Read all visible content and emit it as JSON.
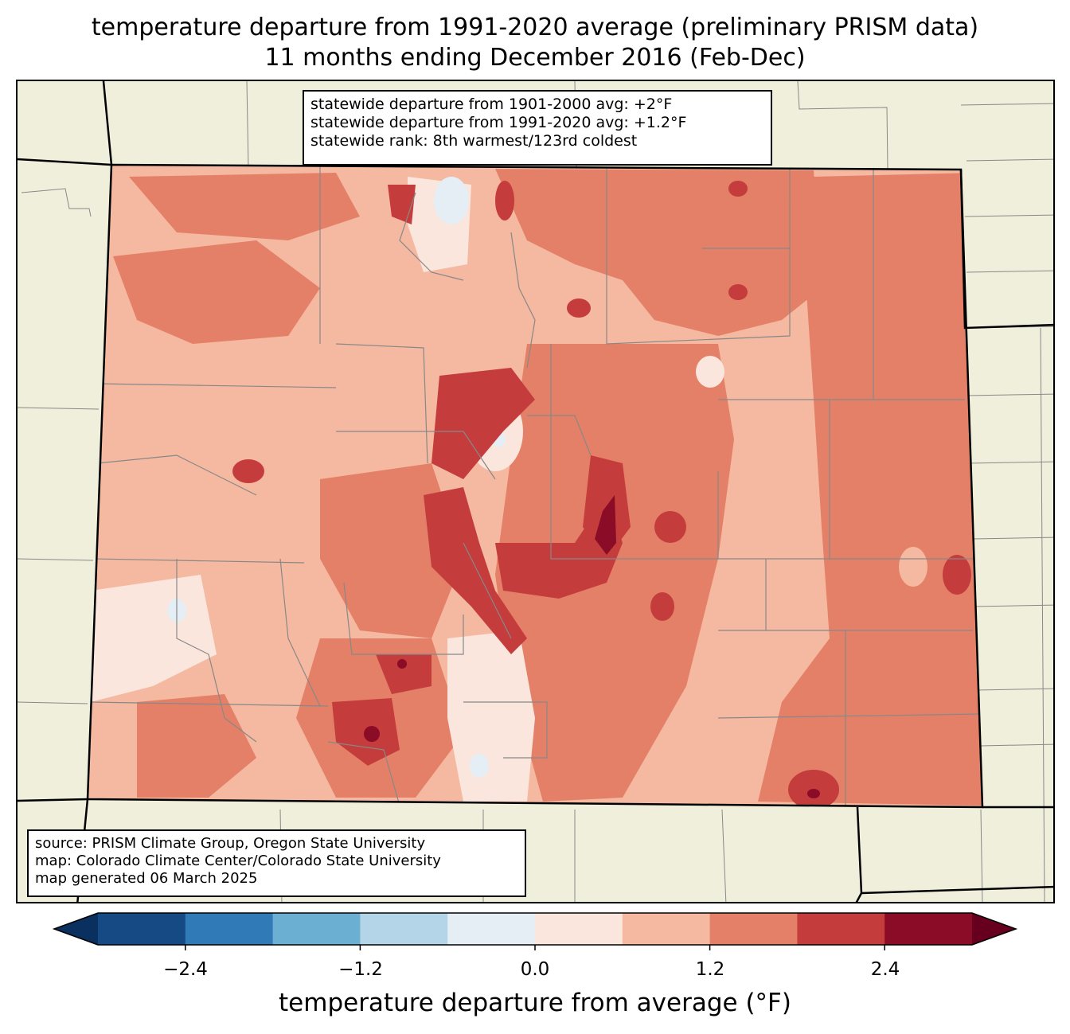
{
  "title": {
    "line1": "temperature departure from 1991-2020 average (preliminary PRISM data)",
    "line2": "11 months ending December 2016 (Feb-Dec)"
  },
  "stats_box": {
    "line1": "statewide departure from 1901-2000 avg: +2°F",
    "line2": "statewide departure from 1991-2020 avg: +1.2°F",
    "line3": "statewide rank: 8th warmest/123rd coldest"
  },
  "source_box": {
    "line1": "source: PRISM Climate Group, Oregon State University",
    "line2": "map: Colorado Climate Center/Colorado State University",
    "line3": "map generated 06 March 2025"
  },
  "colorbar": {
    "title": "temperature departure from average (°F)",
    "tick_labels": [
      "−2.4",
      "−1.2",
      "0.0",
      "1.2",
      "2.4"
    ],
    "bins": [
      {
        "from": -3.0,
        "to": -2.4,
        "color": "#154a85"
      },
      {
        "from": -2.4,
        "to": -1.8,
        "color": "#2f7ab7"
      },
      {
        "from": -1.8,
        "to": -1.2,
        "color": "#6bafd2"
      },
      {
        "from": -1.2,
        "to": -0.6,
        "color": "#b3d5e7"
      },
      {
        "from": -0.6,
        "to": 0.0,
        "color": "#e5eef4"
      },
      {
        "from": 0.0,
        "to": 0.6,
        "color": "#fae6dc"
      },
      {
        "from": 0.6,
        "to": 1.2,
        "color": "#f5b8a0"
      },
      {
        "from": 1.2,
        "to": 1.8,
        "color": "#e48067"
      },
      {
        "from": 1.8,
        "to": 2.4,
        "color": "#c43c3c"
      },
      {
        "from": 2.4,
        "to": 3.0,
        "color": "#8a0c26"
      }
    ],
    "under_color": "#0a3060",
    "over_color": "#67001f"
  },
  "map_colors": {
    "land_background": "#efefdc",
    "county_lines": "#888888",
    "state_lines": "#000000"
  }
}
